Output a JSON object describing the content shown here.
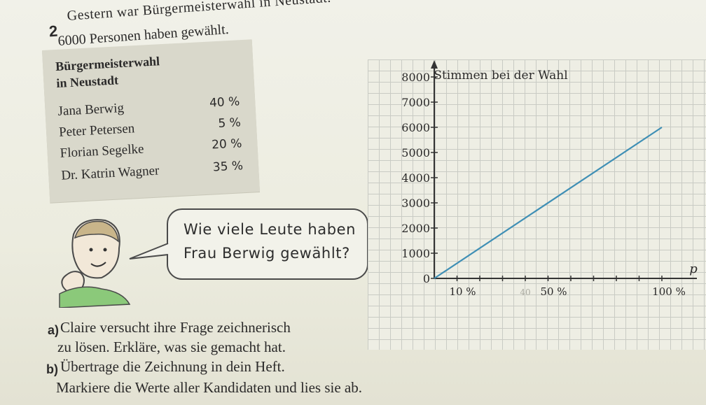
{
  "task": {
    "number": "2",
    "line1": "Gestern war Bürgermeisterwahl in Neustadt.",
    "line2": "6000 Personen haben gewählt."
  },
  "table": {
    "title1": "Bürgermeisterwahl",
    "title2": "in Neustadt",
    "rows": [
      {
        "name": "Jana Berwig",
        "pct": "40 %"
      },
      {
        "name": "Peter Petersen",
        "pct": "5 %"
      },
      {
        "name": "Florian Segelke",
        "pct": "20 %"
      },
      {
        "name": "Dr. Katrin Wagner",
        "pct": "35 %"
      }
    ]
  },
  "speech": {
    "line1": "Wie viele Leute haben",
    "line2": "Frau Berwig gewählt?"
  },
  "chart_data": {
    "type": "line",
    "title": "Stimmen bei der Wahl",
    "xlabel": "p",
    "ylabel": "",
    "x_tick_labels": [
      "10 %",
      "40",
      "50 %",
      "100 %"
    ],
    "y_tick_labels": [
      "0",
      "1000",
      "2000",
      "3000",
      "4000",
      "5000",
      "6000",
      "7000",
      "8000"
    ],
    "xlim": [
      0,
      100
    ],
    "ylim": [
      0,
      8000
    ],
    "series": [
      {
        "x": [
          0,
          100
        ],
        "y": [
          0,
          6000
        ]
      }
    ],
    "grid": true,
    "colors": {
      "line": "#3f8fb5",
      "axis": "#333333"
    }
  },
  "questions": {
    "a_label": "a)",
    "a_line1": "Claire versucht ihre Frage zeichnerisch",
    "a_line2": "zu lösen. Erkläre, was sie gemacht hat.",
    "b_label": "b)",
    "b_line1": "Übertrage die Zeichnung in dein Heft.",
    "b_line2": "Markiere die Werte aller Kandidaten und lies sie ab."
  }
}
